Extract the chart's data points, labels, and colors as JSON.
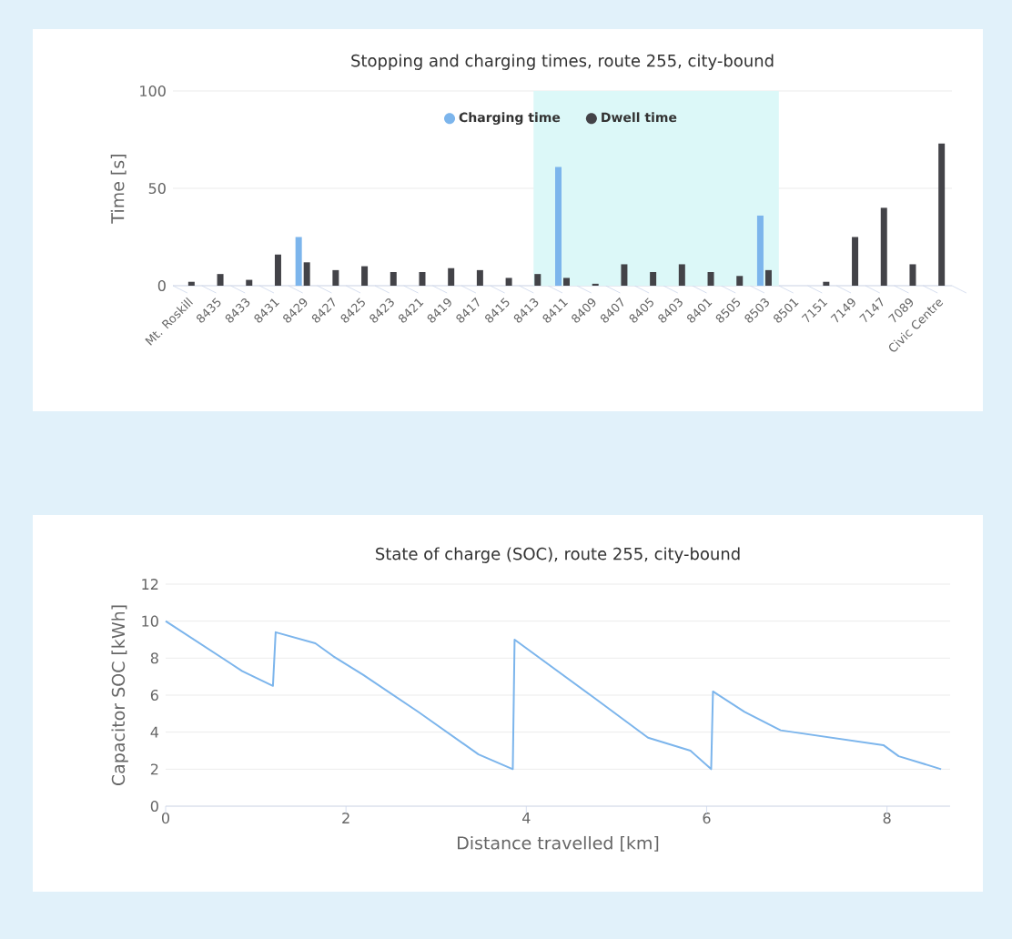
{
  "chart_data": [
    {
      "type": "bar",
      "title": "Stopping and charging times, route 255, city-bound",
      "ylabel": "Time [s]",
      "categories": [
        "Mt. Roskill",
        "8435",
        "8433",
        "8431",
        "8429",
        "8427",
        "8425",
        "8423",
        "8421",
        "8419",
        "8417",
        "8415",
        "8413",
        "8411",
        "8409",
        "8407",
        "8405",
        "8403",
        "8401",
        "8505",
        "8503",
        "8501",
        "7151",
        "7149",
        "7147",
        "7089",
        "Civic Centre"
      ],
      "series": [
        {
          "name": "Charging time",
          "color": "#7cb5ec",
          "values": [
            null,
            null,
            null,
            null,
            25,
            null,
            null,
            null,
            null,
            null,
            null,
            null,
            null,
            61,
            null,
            null,
            null,
            null,
            null,
            null,
            36,
            null,
            null,
            null,
            null,
            null,
            null
          ]
        },
        {
          "name": "Dwell time",
          "color": "#434348",
          "values": [
            2,
            6,
            3,
            16,
            12,
            8,
            10,
            7,
            7,
            9,
            8,
            4,
            6,
            4,
            1,
            11,
            7,
            11,
            7,
            5,
            8,
            null,
            2,
            25,
            40,
            11,
            73
          ]
        }
      ],
      "ylim": [
        0,
        100
      ],
      "yticks": [
        0,
        50,
        100
      ],
      "grid": "y",
      "legend": "top",
      "bands": [
        {
          "axis": "x",
          "from": "8413",
          "to": "8503",
          "color": "#dcf8f8"
        }
      ]
    },
    {
      "type": "line",
      "title": "State of charge (SOC), route 255, city-bound",
      "xlabel": "Distance travelled [km]",
      "ylabel": "Capacitor SOC [kWh]",
      "series": [
        {
          "color": "#7cb5ec",
          "x": [
            0,
            0.85,
            1.19,
            1.22,
            1.66,
            1.86,
            2.19,
            2.8,
            3.47,
            3.85,
            3.87,
            4.74,
            5.35,
            5.82,
            6.05,
            6.07,
            6.42,
            6.82,
            7.96,
            8.13,
            8.6
          ],
          "values": [
            10.0,
            7.3,
            6.5,
            9.4,
            8.8,
            8.1,
            7.1,
            5.1,
            2.8,
            2.0,
            9.0,
            5.9,
            3.7,
            3.0,
            2.0,
            6.2,
            5.1,
            4.1,
            3.3,
            2.7,
            2.0
          ]
        }
      ],
      "xlim": [
        0,
        8.7
      ],
      "xticks": [
        0,
        2,
        4,
        6,
        8
      ],
      "ylim": [
        0,
        12
      ],
      "yticks": [
        0,
        2,
        4,
        6,
        8,
        10,
        12
      ],
      "grid": "y",
      "marker": "none",
      "line_style": "solid"
    }
  ]
}
